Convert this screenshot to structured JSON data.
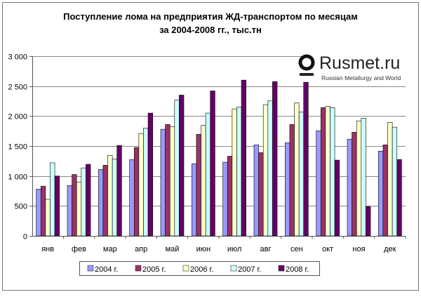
{
  "chart_data": {
    "type": "bar",
    "title": "Поступление лома на предприятия ЖД-транспортом по месяцам",
    "subtitle": "за 2004-2008 гг., тыс.тн",
    "xlabel": "",
    "ylabel": "",
    "ylim": [
      0,
      3000
    ],
    "yticks": [
      0,
      500,
      1000,
      1500,
      2000,
      2500,
      3000
    ],
    "ytick_labels": [
      "0",
      "500",
      "1 000",
      "1 500",
      "2 000",
      "2 500",
      "3 000"
    ],
    "grid": true,
    "legend_position": "bottom",
    "categories": [
      "янв",
      "фев",
      "мар",
      "апр",
      "май",
      "июн",
      "июл",
      "авг",
      "сен",
      "окт",
      "ноя",
      "дек"
    ],
    "series": [
      {
        "name": "2004 г.",
        "color": "#9999ff",
        "values": [
          780,
          840,
          1110,
          1275,
          1780,
          1205,
          1230,
          1520,
          1555,
          1755,
          1615,
          1415
        ]
      },
      {
        "name": "2005 г.",
        "color": "#993366",
        "values": [
          830,
          1025,
          1180,
          1475,
          1860,
          1695,
          1330,
          1390,
          1860,
          2140,
          1730,
          1520
        ]
      },
      {
        "name": "2006 г.",
        "color": "#ffffcc",
        "values": [
          610,
          900,
          1345,
          1710,
          1825,
          1845,
          2120,
          2190,
          2220,
          2165,
          1920,
          1895
        ]
      },
      {
        "name": "2007 г.",
        "color": "#ccffff",
        "values": [
          1220,
          1135,
          1285,
          1800,
          2270,
          2050,
          2150,
          2255,
          2070,
          2140,
          1965,
          1815
        ]
      },
      {
        "name": "2008 г.",
        "color": "#660066",
        "values": [
          1000,
          1195,
          1510,
          2050,
          2350,
          2420,
          2600,
          2575,
          2565,
          1265,
          490,
          1275
        ]
      }
    ]
  },
  "logo": {
    "name": "Rusmet.ru",
    "tagline": "Russian Metallurgy and World"
  }
}
